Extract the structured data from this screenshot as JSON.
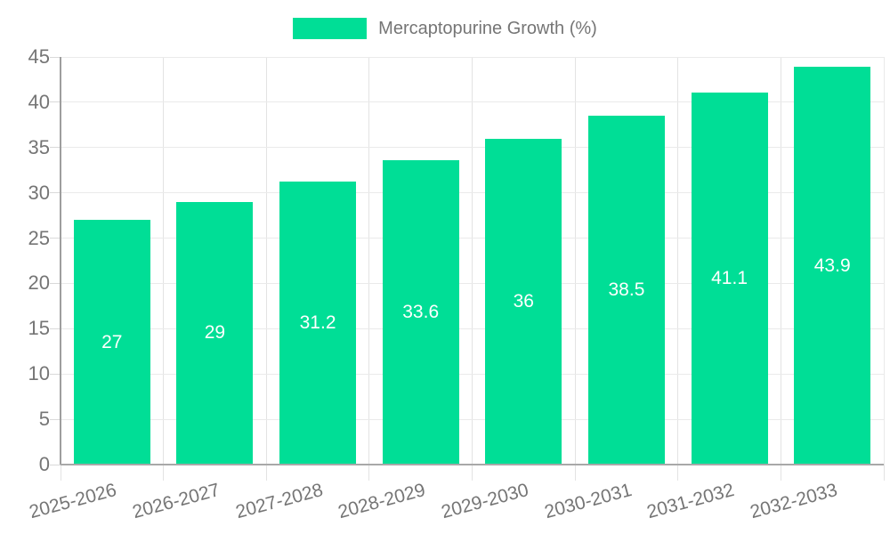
{
  "legend": {
    "label": "Mercaptopurine Growth (%)"
  },
  "chart_data": {
    "type": "bar",
    "title": "Mercaptopurine Growth (%)",
    "categories": [
      "2025-2026",
      "2026-2027",
      "2027-2028",
      "2028-2029",
      "2029-2030",
      "2030-2031",
      "2031-2032",
      "2032-2033"
    ],
    "series": [
      {
        "name": "Mercaptopurine Growth (%)",
        "values": [
          27,
          29,
          31.2,
          33.6,
          36,
          38.5,
          41.1,
          43.9
        ]
      }
    ],
    "value_labels": [
      "27",
      "29",
      "31.2",
      "33.6",
      "36",
      "38.5",
      "41.1",
      "43.9"
    ],
    "xlabel": "",
    "ylabel": "",
    "ylim": [
      0,
      45
    ],
    "ytick_step": 5,
    "yticks": [
      0,
      5,
      10,
      15,
      20,
      25,
      30,
      35,
      40,
      45
    ],
    "grid": true,
    "legend_position": "top",
    "label_rotation_deg": -15,
    "colors": {
      "bar": "#00DE96",
      "axis_text": "#757575",
      "value_label_text": "#ffffff",
      "h_gridline": "#eaeaea",
      "v_gridline": "#e3e3e3",
      "y_axis_line": "#9e9e9e",
      "x_axis_line": "#a8a8a8",
      "right_border": "#eaeaea",
      "y_tick_mark": "#d9d9d9"
    }
  }
}
